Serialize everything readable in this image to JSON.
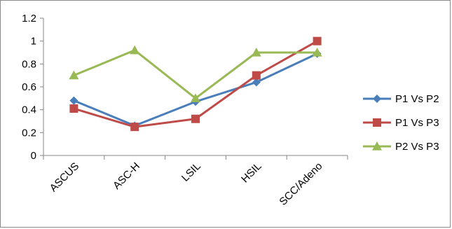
{
  "chart_data": {
    "type": "line",
    "categories": [
      "ASCUS",
      "ASC-H",
      "LSIL",
      "HSIL",
      "SCC/Adeno"
    ],
    "series": [
      {
        "name": "P1 Vs P2",
        "values": [
          0.48,
          0.26,
          0.47,
          0.64,
          0.89
        ],
        "color": "#4a7ebb",
        "marker": "diamond"
      },
      {
        "name": "P1 Vs P3",
        "values": [
          0.41,
          0.25,
          0.32,
          0.7,
          1.0
        ],
        "color": "#be4b48",
        "marker": "square"
      },
      {
        "name": "P2 Vs P3",
        "values": [
          0.7,
          0.92,
          0.5,
          0.9,
          0.9
        ],
        "color": "#98b954",
        "marker": "triangle"
      }
    ],
    "ylim": [
      0,
      1.2
    ],
    "yticks": [
      "0",
      "0.2",
      "0.4",
      "0.6",
      "0.8",
      "1",
      "1.2"
    ],
    "grid": false,
    "legend_position": "right",
    "title": "",
    "xlabel": "",
    "ylabel": ""
  }
}
